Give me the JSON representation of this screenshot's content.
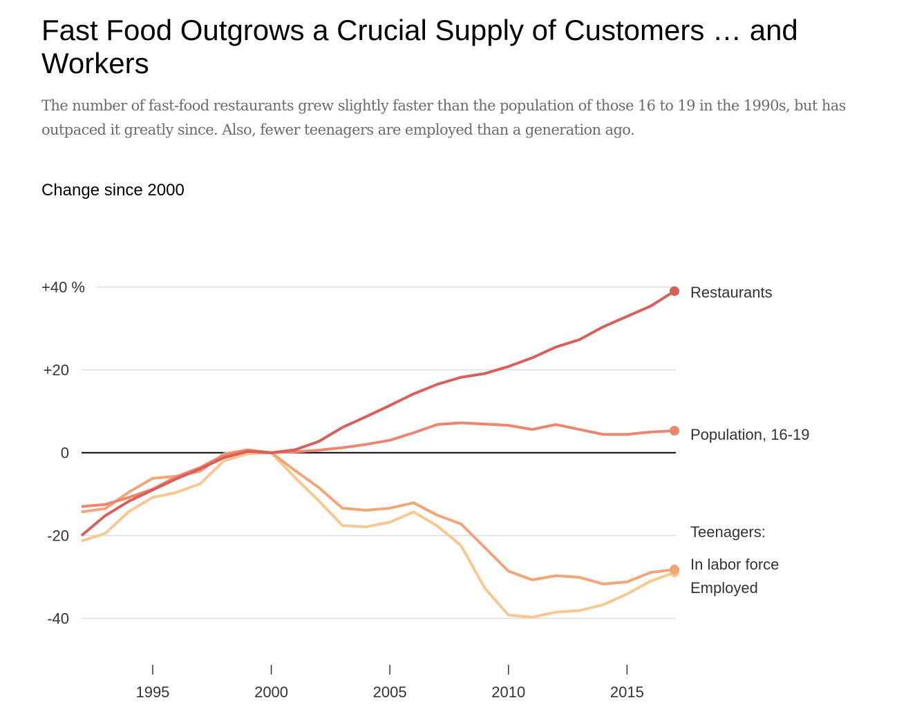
{
  "header": {
    "title": "Fast Food Outgrows a Crucial Supply of Customers … and Workers",
    "subtitle": "The number of fast-food restaurants grew slightly faster than the population of those 16 to 19 in the 1990s, but has outpaced it greatly since. Also, fewer teenagers are employed than a generation ago.",
    "unit_label": "Change since 2000"
  },
  "chart_data": {
    "type": "line",
    "title": "Fast Food Outgrows a Crucial Supply of Customers … and Workers",
    "ylabel": "Change since 2000",
    "xlabel": "",
    "x": [
      1992,
      1993,
      1994,
      1995,
      1996,
      1997,
      1998,
      1999,
      2000,
      2001,
      2002,
      2003,
      2004,
      2005,
      2006,
      2007,
      2008,
      2009,
      2010,
      2011,
      2012,
      2013,
      2014,
      2015,
      2016,
      2017
    ],
    "xlim": [
      1992,
      2017
    ],
    "ylim": [
      -50,
      42
    ],
    "x_ticks": [
      1995,
      2000,
      2005,
      2010,
      2015
    ],
    "y_ticks": [
      {
        "value": 40,
        "label": "+40 %"
      },
      {
        "value": 20,
        "label": "+20"
      },
      {
        "value": 0,
        "label": "0"
      },
      {
        "value": -20,
        "label": "-20"
      },
      {
        "value": -40,
        "label": "-40"
      }
    ],
    "grid": true,
    "annotation_group_label": "Teenagers:",
    "series": [
      {
        "name": "Restaurants",
        "color": "#d95f5b",
        "values": [
          -20.0,
          -15.2,
          -11.7,
          -9.0,
          -6.3,
          -3.9,
          -1.2,
          0.3,
          0.0,
          0.7,
          2.7,
          6.1,
          8.7,
          11.4,
          14.2,
          16.5,
          18.2,
          19.1,
          20.8,
          22.9,
          25.5,
          27.3,
          30.4,
          32.9,
          35.4,
          39.0
        ]
      },
      {
        "name": "Population, 16-19",
        "color": "#ec8670",
        "values": [
          -13.0,
          -12.5,
          -10.8,
          -8.8,
          -5.8,
          -3.6,
          -0.6,
          0.6,
          0.0,
          0.2,
          0.6,
          1.2,
          2.0,
          3.0,
          4.8,
          6.8,
          7.2,
          6.9,
          6.6,
          5.6,
          6.8,
          5.6,
          4.4,
          4.4,
          5.0,
          5.3
        ]
      },
      {
        "name": "In labor force",
        "color": "#f3a578",
        "values": [
          -14.3,
          -13.5,
          -9.5,
          -6.2,
          -5.7,
          -4.5,
          -0.3,
          0.7,
          0.0,
          -4.3,
          -8.4,
          -13.4,
          -13.9,
          -13.4,
          -12.1,
          -15.1,
          -17.2,
          -22.9,
          -28.6,
          -30.7,
          -29.7,
          -30.1,
          -31.7,
          -31.2,
          -28.9,
          -28.2
        ]
      },
      {
        "name": "Employed",
        "color": "#f8c892",
        "values": [
          -21.3,
          -19.5,
          -14.2,
          -10.8,
          -9.6,
          -7.5,
          -2.0,
          -0.3,
          0.0,
          -6.0,
          -11.6,
          -17.6,
          -17.9,
          -16.8,
          -14.3,
          -17.7,
          -22.4,
          -32.7,
          -39.2,
          -39.7,
          -38.5,
          -38.1,
          -36.7,
          -34.1,
          -31.0,
          -28.9
        ]
      }
    ]
  }
}
